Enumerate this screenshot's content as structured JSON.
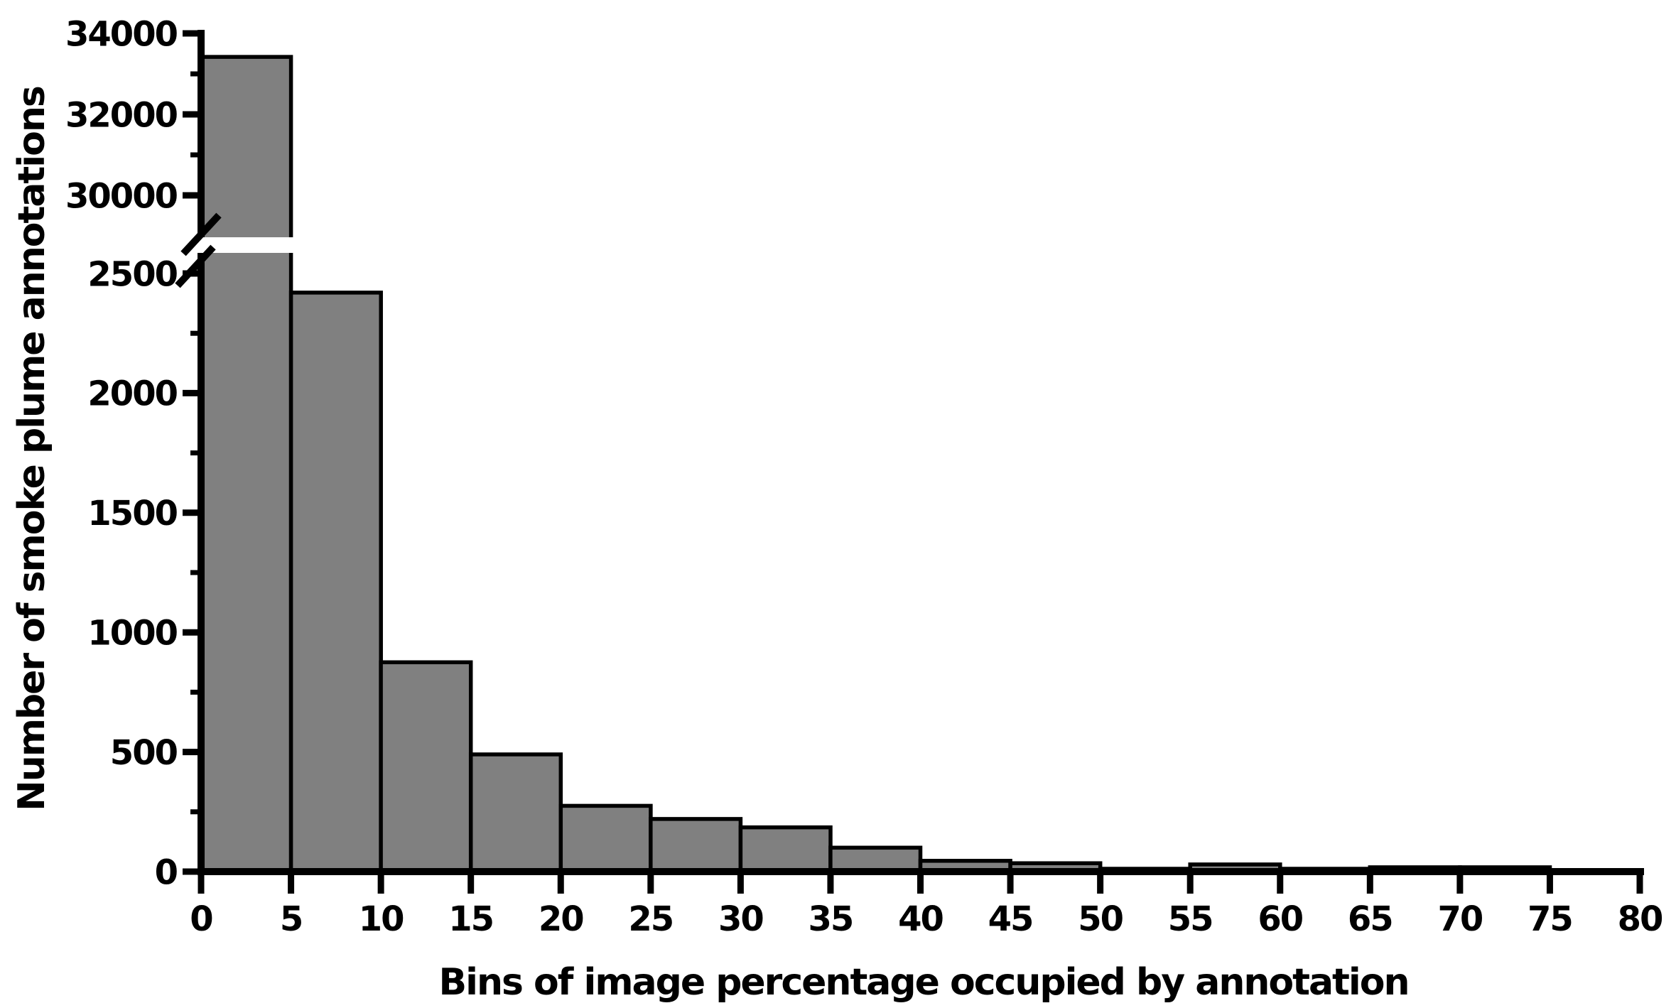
{
  "chart_data": {
    "type": "bar",
    "subtype": "histogram",
    "title": "",
    "xlabel": "Bins of image percentage occupied by annotation",
    "ylabel": "Number of smoke plume annotations",
    "bin_width": 5,
    "bin_edges": [
      0,
      5,
      10,
      15,
      20,
      25,
      30,
      35,
      40,
      45,
      50,
      55,
      60,
      65,
      70,
      75,
      80
    ],
    "categories": [
      "0-5",
      "5-10",
      "10-15",
      "15-20",
      "20-25",
      "25-30",
      "30-35",
      "35-40",
      "40-45",
      "45-50",
      "50-55",
      "55-60",
      "60-65",
      "65-70",
      "70-75",
      "75-80"
    ],
    "values": [
      33420,
      2420,
      875,
      490,
      275,
      220,
      185,
      100,
      45,
      35,
      12,
      30,
      12,
      18,
      18,
      0
    ],
    "x_tick_labels": [
      "0",
      "5",
      "10",
      "15",
      "20",
      "25",
      "30",
      "35",
      "40",
      "45",
      "50",
      "55",
      "60",
      "65",
      "70",
      "75",
      "80"
    ],
    "xlim": [
      0,
      80
    ],
    "grid": false,
    "legend": null,
    "y_axis": {
      "broken": true,
      "lower_range": [
        0,
        2600
      ],
      "upper_range": [
        28800,
        34000
      ],
      "lower_ticks_major": [
        0,
        500,
        1000,
        1500,
        2000,
        2500
      ],
      "lower_ticks_minor": [
        250,
        750,
        1250,
        1750,
        2250
      ],
      "upper_ticks_major": [
        30000,
        32000,
        34000
      ],
      "upper_ticks_minor": [
        31000,
        33000
      ]
    },
    "colors": {
      "bar_fill": "#808080",
      "bar_border": "#000000",
      "axis": "#000000",
      "text": "#000000",
      "background": "#ffffff"
    }
  }
}
